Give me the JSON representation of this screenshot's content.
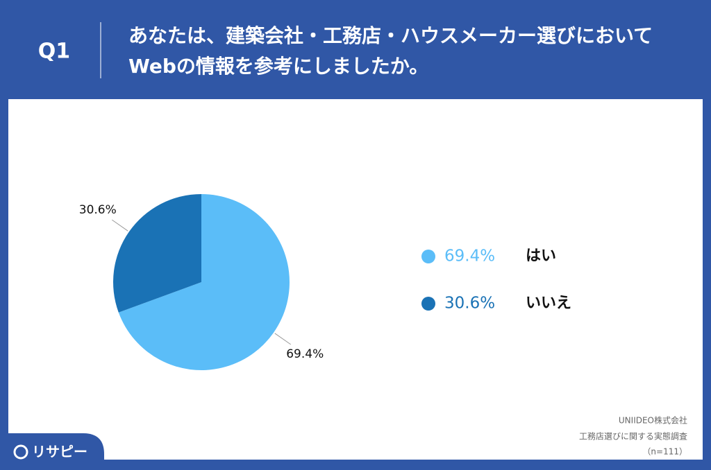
{
  "chart_data": {
    "type": "pie",
    "question_number": "Q1",
    "title": [
      "あなたは、建築会社・工務店・ハウスメーカー選びにおいて",
      "Webの情報を参考にしましたか。"
    ],
    "categories": [
      "はい",
      "いいえ"
    ],
    "values": [
      69.4,
      30.6
    ],
    "value_labels": [
      "69.4%",
      "30.6%"
    ],
    "colors": [
      "#5bbdf8",
      "#1a72b5"
    ],
    "source": [
      "UNIIDEO株式会社",
      "工務店選びに関する実態調査",
      "（n=111）"
    ],
    "brand": "リサピー"
  }
}
